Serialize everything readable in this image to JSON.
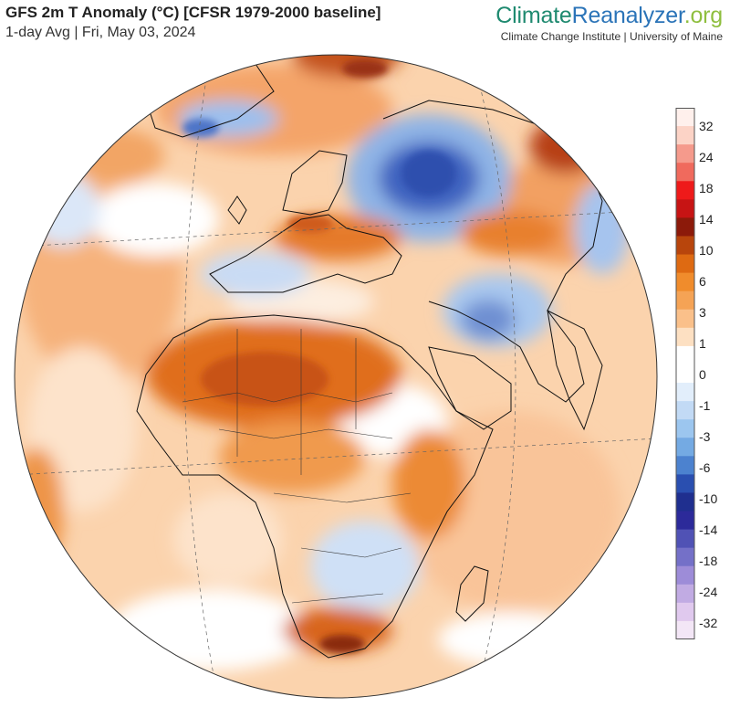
{
  "header": {
    "title": "GFS 2m T Anomaly (°C) [CFSR 1979-2000 baseline]",
    "subtitle": "1-day Avg | Fri, May 03, 2024",
    "brand_part1": "Climate",
    "brand_part2": "Reanalyzer",
    "brand_part3": ".org",
    "brand_subtitle": "Climate Change Institute | University of Maine"
  },
  "colorbar": {
    "labels": [
      "32",
      "24",
      "18",
      "14",
      "10",
      "6",
      "3",
      "1",
      "0",
      "-1",
      "-3",
      "-6",
      "-10",
      "-14",
      "-18",
      "-24",
      "-32"
    ],
    "colors": [
      "#fff0ec",
      "#fcd3c6",
      "#f59a8c",
      "#f06a5d",
      "#ee1a1a",
      "#c71414",
      "#8c1a0a",
      "#b8450c",
      "#de6a12",
      "#f08c2c",
      "#f5a355",
      "#fac08a",
      "#fde0c2",
      "#ffffff",
      "#ffffff",
      "#e2eefb",
      "#c2daf5",
      "#9cc6ef",
      "#74aae3",
      "#4c82cf",
      "#2a4fb0",
      "#1f2f8f",
      "#2c2a9a",
      "#5052b5",
      "#7470c8",
      "#9d8cd8",
      "#c1abe3",
      "#e0c9ee",
      "#f3e6f6"
    ]
  }
}
